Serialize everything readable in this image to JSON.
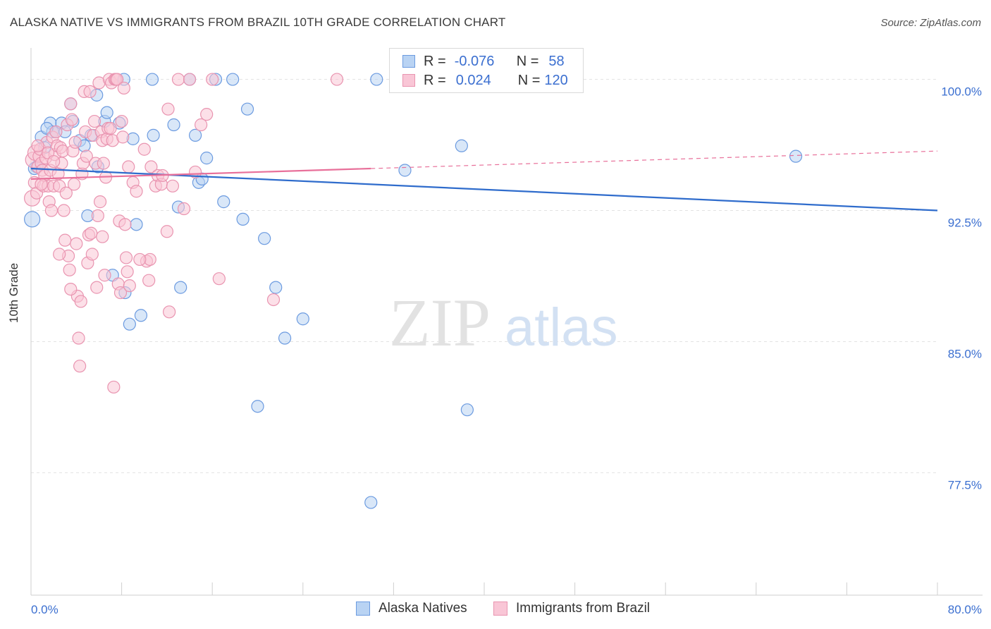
{
  "title": "ALASKA NATIVE VS IMMIGRANTS FROM BRAZIL 10TH GRADE CORRELATION CHART",
  "source": "Source: ZipAtlas.com",
  "watermark": {
    "zip": "ZIP",
    "atlas": "atlas"
  },
  "legend": {
    "r_label": "R =",
    "n_label": "N =",
    "rows": [
      {
        "r": "-0.076",
        "n": "58"
      },
      {
        "r": "0.024",
        "n": "120"
      }
    ]
  },
  "colors": {
    "blue_fill": "#b9d3f3",
    "blue_stroke": "#6c9be0",
    "blue_line": "#2f6ccc",
    "pink_fill": "#f9c6d6",
    "pink_stroke": "#e994b0",
    "pink_line": "#e8709a",
    "axis_text": "#3b6fd0",
    "grid": "#e3e3e3"
  },
  "chart_data": {
    "type": "scatter",
    "title": "ALASKA NATIVE VS IMMIGRANTS FROM BRAZIL 10TH GRADE CORRELATION CHART",
    "xlabel": "",
    "ylabel": "10th Grade",
    "xlim": [
      0,
      80
    ],
    "ylim": [
      70.5,
      102.2
    ],
    "x_tick_labels": [
      "0.0%",
      "80.0%"
    ],
    "y_ticks": [
      100.0,
      92.5,
      85.0,
      77.5
    ],
    "y_tick_labels": [
      "100.0%",
      "92.5%",
      "85.0%",
      "77.5%"
    ],
    "grid": true,
    "legend_position": "top-center",
    "series": [
      {
        "name": "Alaska Natives",
        "color": "blue",
        "trend": {
          "x0": 0,
          "y0": 94.9,
          "x1": 80,
          "y1": 92.5,
          "dashed_from": null
        },
        "points": [
          [
            0.1,
            92.0
          ],
          [
            0.5,
            95.0
          ],
          [
            0.9,
            96.7
          ],
          [
            1.2,
            96.1
          ],
          [
            1.7,
            97.5
          ],
          [
            1.9,
            97.0
          ],
          [
            2.2,
            97.0
          ],
          [
            2.7,
            97.5
          ],
          [
            3.0,
            97.0
          ],
          [
            3.5,
            98.6
          ],
          [
            3.7,
            97.6
          ],
          [
            4.3,
            96.5
          ],
          [
            4.7,
            96.2
          ],
          [
            5.0,
            92.2
          ],
          [
            5.3,
            96.8
          ],
          [
            5.8,
            99.1
          ],
          [
            5.9,
            95.0
          ],
          [
            6.5,
            97.6
          ],
          [
            6.7,
            98.1
          ],
          [
            7.2,
            88.8
          ],
          [
            7.8,
            97.5
          ],
          [
            8.2,
            100.0
          ],
          [
            8.3,
            87.8
          ],
          [
            8.7,
            86.0
          ],
          [
            9.0,
            96.6
          ],
          [
            9.3,
            91.7
          ],
          [
            9.7,
            86.5
          ],
          [
            10.7,
            100.0
          ],
          [
            10.8,
            96.8
          ],
          [
            12.6,
            97.4
          ],
          [
            13.0,
            92.7
          ],
          [
            13.2,
            88.1
          ],
          [
            14.0,
            100.0
          ],
          [
            14.5,
            96.8
          ],
          [
            14.8,
            94.1
          ],
          [
            15.1,
            94.3
          ],
          [
            15.5,
            95.5
          ],
          [
            16.3,
            100.0
          ],
          [
            17.0,
            93.0
          ],
          [
            17.8,
            100.0
          ],
          [
            18.7,
            92.0
          ],
          [
            19.1,
            98.3
          ],
          [
            20.0,
            81.3
          ],
          [
            20.6,
            90.9
          ],
          [
            21.6,
            88.1
          ],
          [
            22.4,
            85.2
          ],
          [
            24.0,
            86.3
          ],
          [
            30.5,
            100.0
          ],
          [
            33.0,
            94.8
          ],
          [
            38.0,
            96.2
          ],
          [
            38.5,
            81.1
          ],
          [
            41.0,
            100.0
          ],
          [
            45.0,
            100.0
          ],
          [
            47.0,
            100.0
          ],
          [
            30.0,
            75.8
          ],
          [
            67.5,
            95.6
          ],
          [
            0.3,
            94.9
          ],
          [
            1.4,
            97.2
          ]
        ]
      },
      {
        "name": "Immigrants from Brazil",
        "color": "pink",
        "trend": {
          "x0": 0,
          "y0": 94.3,
          "x1": 80,
          "y1": 95.9,
          "dashed_from": 30
        },
        "points": [
          [
            0.1,
            93.2
          ],
          [
            0.2,
            95.4
          ],
          [
            0.3,
            94.1
          ],
          [
            0.4,
            95.8
          ],
          [
            0.5,
            93.5
          ],
          [
            0.6,
            95.0
          ],
          [
            0.7,
            95.6
          ],
          [
            0.8,
            96.0
          ],
          [
            0.9,
            95.2
          ],
          [
            1.0,
            94.8
          ],
          [
            1.1,
            93.9
          ],
          [
            1.2,
            94.5
          ],
          [
            1.3,
            95.5
          ],
          [
            1.4,
            96.4
          ],
          [
            1.5,
            93.9
          ],
          [
            1.6,
            93.0
          ],
          [
            1.7,
            94.8
          ],
          [
            1.8,
            92.5
          ],
          [
            1.9,
            96.7
          ],
          [
            2.0,
            93.9
          ],
          [
            2.1,
            95.7
          ],
          [
            2.2,
            97.0
          ],
          [
            2.3,
            96.2
          ],
          [
            2.4,
            94.6
          ],
          [
            2.5,
            93.9
          ],
          [
            2.6,
            96.1
          ],
          [
            2.7,
            95.2
          ],
          [
            2.8,
            95.9
          ],
          [
            2.9,
            92.5
          ],
          [
            3.0,
            90.8
          ],
          [
            3.1,
            93.5
          ],
          [
            3.2,
            97.4
          ],
          [
            3.3,
            89.9
          ],
          [
            3.4,
            89.1
          ],
          [
            3.5,
            98.6
          ],
          [
            3.6,
            97.7
          ],
          [
            3.7,
            95.9
          ],
          [
            3.8,
            94.0
          ],
          [
            3.9,
            96.4
          ],
          [
            4.0,
            90.6
          ],
          [
            4.1,
            87.6
          ],
          [
            4.2,
            85.2
          ],
          [
            4.3,
            83.6
          ],
          [
            4.4,
            87.3
          ],
          [
            4.5,
            94.6
          ],
          [
            4.6,
            95.2
          ],
          [
            4.7,
            99.3
          ],
          [
            4.8,
            97.0
          ],
          [
            4.9,
            95.6
          ],
          [
            5.0,
            89.5
          ],
          [
            5.1,
            91.1
          ],
          [
            5.2,
            99.3
          ],
          [
            5.3,
            91.2
          ],
          [
            5.4,
            90.0
          ],
          [
            5.5,
            96.8
          ],
          [
            5.6,
            97.6
          ],
          [
            5.7,
            95.2
          ],
          [
            5.8,
            88.1
          ],
          [
            5.9,
            92.2
          ],
          [
            6.0,
            99.8
          ],
          [
            6.1,
            93.0
          ],
          [
            6.2,
            97.0
          ],
          [
            6.3,
            96.5
          ],
          [
            6.4,
            95.2
          ],
          [
            6.5,
            88.8
          ],
          [
            6.6,
            94.4
          ],
          [
            6.7,
            96.6
          ],
          [
            6.8,
            97.2
          ],
          [
            6.9,
            100.0
          ],
          [
            7.0,
            97.2
          ],
          [
            7.1,
            99.8
          ],
          [
            7.2,
            96.5
          ],
          [
            7.3,
            82.4
          ],
          [
            7.4,
            100.0
          ],
          [
            7.5,
            100.0
          ],
          [
            7.6,
            100.0
          ],
          [
            7.7,
            88.3
          ],
          [
            7.8,
            91.9
          ],
          [
            7.9,
            87.8
          ],
          [
            8.0,
            97.6
          ],
          [
            8.1,
            96.7
          ],
          [
            8.2,
            99.5
          ],
          [
            8.3,
            91.7
          ],
          [
            8.4,
            89.8
          ],
          [
            8.5,
            89.0
          ],
          [
            8.6,
            95.0
          ],
          [
            8.7,
            88.2
          ],
          [
            9.0,
            94.1
          ],
          [
            9.3,
            93.6
          ],
          [
            10.0,
            96.0
          ],
          [
            10.2,
            89.6
          ],
          [
            10.4,
            88.5
          ],
          [
            10.5,
            89.7
          ],
          [
            10.6,
            95.0
          ],
          [
            11.0,
            93.9
          ],
          [
            11.2,
            94.5
          ],
          [
            11.5,
            94.0
          ],
          [
            12.0,
            91.3
          ],
          [
            12.1,
            98.3
          ],
          [
            12.2,
            86.7
          ],
          [
            12.5,
            93.9
          ],
          [
            13.0,
            100.0
          ],
          [
            13.5,
            92.6
          ],
          [
            14.0,
            100.0
          ],
          [
            14.5,
            94.7
          ],
          [
            15.0,
            97.4
          ],
          [
            15.5,
            98.0
          ],
          [
            16.0,
            100.0
          ],
          [
            16.6,
            88.6
          ],
          [
            21.4,
            87.4
          ],
          [
            27.0,
            100.0
          ],
          [
            3.5,
            88.0
          ],
          [
            2.5,
            90.0
          ],
          [
            6.3,
            91.0
          ],
          [
            9.6,
            89.7
          ],
          [
            11.6,
            94.5
          ],
          [
            0.9,
            94.0
          ],
          [
            1.5,
            95.8
          ],
          [
            0.6,
            96.2
          ],
          [
            2.0,
            95.3
          ]
        ]
      }
    ]
  },
  "bottom_legend": [
    "Alaska Natives",
    "Immigrants from Brazil"
  ]
}
